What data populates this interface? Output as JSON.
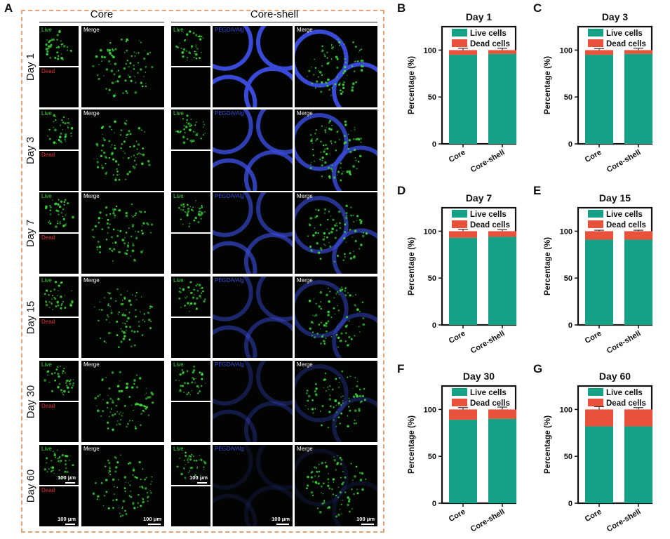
{
  "panel_letters": {
    "a": "A",
    "b": "B",
    "c": "C",
    "d": "D",
    "e": "E",
    "f": "F",
    "g": "G"
  },
  "columns": {
    "core": "Core",
    "core_shell": "Core-shell"
  },
  "tile_labels": {
    "live": "Live",
    "dead": "Dead",
    "merge": "Merge",
    "pegda": "PEGDA/Alg"
  },
  "scale_label": "100 μm",
  "days": [
    "Day 1",
    "Day 3",
    "Day 7",
    "Day 15",
    "Day 30",
    "Day 60"
  ],
  "colors": {
    "live": "#16a085",
    "dead": "#e8523a",
    "border": "#e2a276",
    "micro_bg": "#020402",
    "green": "#3fd43f",
    "blue": "#3a4ad8"
  },
  "chart_data": [
    {
      "panel": "B",
      "type": "bar",
      "title": "Day 1",
      "categories": [
        "Core",
        "Core-shell"
      ],
      "ylabel": "Percentage (%)",
      "ylim": [
        0,
        125
      ],
      "yticks": [
        0,
        50,
        100
      ],
      "series": [
        {
          "name": "Live cells",
          "values": [
            95,
            96
          ]
        },
        {
          "name": "Dead cells",
          "values": [
            5,
            4
          ]
        }
      ],
      "errors": [
        2,
        2
      ],
      "legend": "top"
    },
    {
      "panel": "C",
      "type": "bar",
      "title": "Day 3",
      "categories": [
        "Core",
        "Core-shell"
      ],
      "ylabel": "Percentage (%)",
      "ylim": [
        0,
        125
      ],
      "yticks": [
        0,
        50,
        100
      ],
      "series": [
        {
          "name": "Live cells",
          "values": [
            95,
            96
          ]
        },
        {
          "name": "Dead cells",
          "values": [
            5,
            4
          ]
        }
      ],
      "errors": [
        1.5,
        2
      ],
      "legend": "top"
    },
    {
      "panel": "D",
      "type": "bar",
      "title": "Day 7",
      "categories": [
        "Core",
        "Core-shell"
      ],
      "ylabel": "Percentage (%)",
      "ylim": [
        0,
        125
      ],
      "yticks": [
        0,
        50,
        100
      ],
      "series": [
        {
          "name": "Live cells",
          "values": [
            93,
            94
          ]
        },
        {
          "name": "Dead cells",
          "values": [
            7,
            6
          ]
        }
      ],
      "errors": [
        2,
        1.5
      ],
      "legend": "top"
    },
    {
      "panel": "E",
      "type": "bar",
      "title": "Day 15",
      "categories": [
        "Core",
        "Core-shell"
      ],
      "ylabel": "Percentage (%)",
      "ylim": [
        0,
        125
      ],
      "yticks": [
        0,
        50,
        100
      ],
      "series": [
        {
          "name": "Live cells",
          "values": [
            91,
            91
          ]
        },
        {
          "name": "Dead cells",
          "values": [
            9,
            9
          ]
        }
      ],
      "errors": [
        1,
        1
      ],
      "legend": "top"
    },
    {
      "panel": "F",
      "type": "bar",
      "title": "Day 30",
      "categories": [
        "Core",
        "Core-shell"
      ],
      "ylabel": "Percentage (%)",
      "ylim": [
        0,
        125
      ],
      "yticks": [
        0,
        50,
        100
      ],
      "series": [
        {
          "name": "Live cells",
          "values": [
            89,
            90
          ]
        },
        {
          "name": "Dead cells",
          "values": [
            11,
            10
          ]
        }
      ],
      "errors": [
        2,
        2.5
      ],
      "legend": "top"
    },
    {
      "panel": "G",
      "type": "bar",
      "title": "Day 60",
      "categories": [
        "Core",
        "Core-shell"
      ],
      "ylabel": "Percentage (%)",
      "ylim": [
        0,
        125
      ],
      "yticks": [
        0,
        50,
        100
      ],
      "series": [
        {
          "name": "Live cells",
          "values": [
            82,
            82
          ]
        },
        {
          "name": "Dead cells",
          "values": [
            18,
            18
          ]
        }
      ],
      "errors": [
        3,
        2
      ],
      "legend": "top"
    }
  ]
}
